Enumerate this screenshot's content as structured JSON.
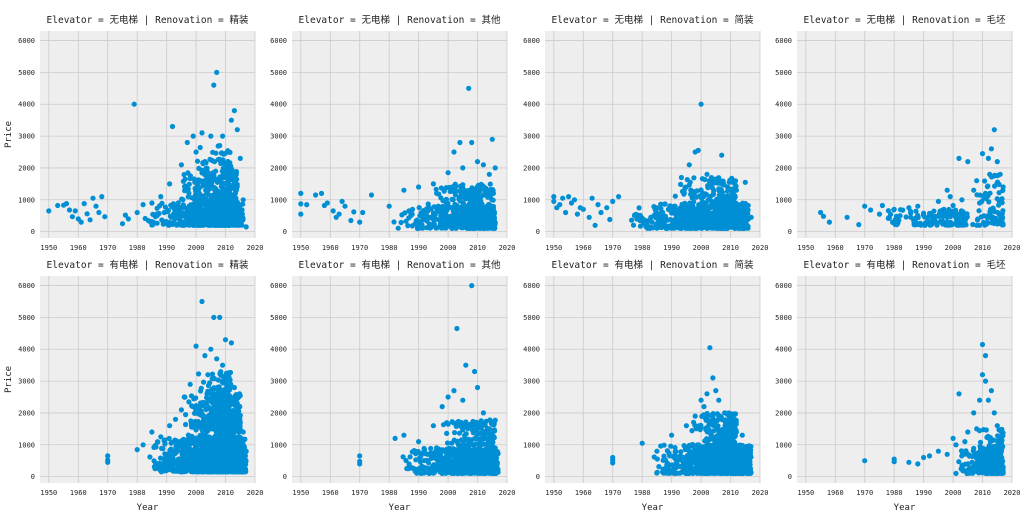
{
  "figure": {
    "row_values": [
      "无电梯",
      "有电梯"
    ],
    "col_values": [
      "精装",
      "其他",
      "简装",
      "毛坯"
    ],
    "row_var": "Elevator",
    "col_var": "Renovation",
    "ylabel": "Price",
    "xlabel": "Year"
  },
  "chart_data": {
    "type": "scatter",
    "facet_grid": true,
    "row_var": "Elevator",
    "col_var": "Renovation",
    "xlabel": "Year",
    "ylabel": "Price",
    "xlim": [
      1947,
      2020
    ],
    "ylim": [
      -200,
      6300
    ],
    "xticks": [
      1950,
      1960,
      1970,
      1980,
      1990,
      2000,
      2010,
      2020
    ],
    "yticks": [
      0,
      1000,
      2000,
      3000,
      4000,
      5000,
      6000
    ],
    "grid": true,
    "background": "#eeeeee",
    "point_color": "#008fd5",
    "panels": [
      {
        "title": "Elevator = 无电梯 | Renovation = 精装",
        "row": 0,
        "col": 0,
        "points": [
          [
            1950,
            650
          ],
          [
            1953,
            820
          ],
          [
            1955,
            830
          ],
          [
            1956,
            880
          ],
          [
            1957,
            680
          ],
          [
            1958,
            470
          ],
          [
            1959,
            650
          ],
          [
            1960,
            400
          ],
          [
            1961,
            300
          ],
          [
            1962,
            880
          ],
          [
            1963,
            560
          ],
          [
            1964,
            370
          ],
          [
            1965,
            1050
          ],
          [
            1966,
            800
          ],
          [
            1967,
            600
          ],
          [
            1968,
            1100
          ],
          [
            1969,
            470
          ],
          [
            1975,
            250
          ],
          [
            1976,
            520
          ],
          [
            1977,
            400
          ],
          [
            1979,
            4000
          ],
          [
            1980,
            600
          ],
          [
            1982,
            850
          ],
          [
            1985,
            900
          ],
          [
            1988,
            1100
          ],
          [
            1991,
            1500
          ],
          [
            1992,
            3300
          ],
          [
            1995,
            2100
          ],
          [
            1997,
            2800
          ],
          [
            1999,
            3000
          ],
          [
            2000,
            2500
          ],
          [
            2002,
            3100
          ],
          [
            2003,
            2200
          ],
          [
            2005,
            3000
          ],
          [
            2006,
            4600
          ],
          [
            2007,
            5000
          ],
          [
            2008,
            2700
          ],
          [
            2009,
            3000
          ],
          [
            2010,
            2100
          ],
          [
            2011,
            2500
          ],
          [
            2012,
            3500
          ],
          [
            2013,
            3800
          ],
          [
            2014,
            3200
          ],
          [
            2015,
            2300
          ],
          [
            2016,
            1000
          ],
          [
            2017,
            150
          ]
        ],
        "clusters": [
          {
            "x": [
              1975,
              2016
            ],
            "y": [
              200,
              900
            ],
            "n": 420
          },
          {
            "x": [
              1988,
              2014
            ],
            "y": [
              200,
              2000
            ],
            "n": 420
          },
          {
            "x": [
              1996,
              2012
            ],
            "y": [
              200,
              2700
            ],
            "n": 160
          }
        ]
      },
      {
        "title": "Elevator = 无电梯 | Renovation = 其他",
        "row": 0,
        "col": 1,
        "points": [
          [
            1950,
            1200
          ],
          [
            1950,
            870
          ],
          [
            1950,
            550
          ],
          [
            1952,
            850
          ],
          [
            1955,
            1150
          ],
          [
            1957,
            1200
          ],
          [
            1958,
            820
          ],
          [
            1959,
            900
          ],
          [
            1961,
            650
          ],
          [
            1962,
            450
          ],
          [
            1963,
            550
          ],
          [
            1964,
            950
          ],
          [
            1965,
            800
          ],
          [
            1967,
            350
          ],
          [
            1968,
            620
          ],
          [
            1970,
            300
          ],
          [
            1971,
            600
          ],
          [
            1974,
            1150
          ],
          [
            1980,
            800
          ],
          [
            1985,
            1300
          ],
          [
            1990,
            1400
          ],
          [
            1995,
            1500
          ],
          [
            2000,
            1850
          ],
          [
            2002,
            2500
          ],
          [
            2004,
            2800
          ],
          [
            2005,
            2000
          ],
          [
            2007,
            4500
          ],
          [
            2008,
            2800
          ],
          [
            2010,
            2200
          ],
          [
            2012,
            2100
          ],
          [
            2014,
            1800
          ],
          [
            2015,
            2900
          ],
          [
            2016,
            2000
          ]
        ],
        "clusters": [
          {
            "x": [
              1975,
              2016
            ],
            "y": [
              100,
              800
            ],
            "n": 380
          },
          {
            "x": [
              1988,
              2016
            ],
            "y": [
              200,
              1500
            ],
            "n": 260
          }
        ]
      },
      {
        "title": "Elevator = 无电梯 | Renovation = 简装",
        "row": 0,
        "col": 2,
        "points": [
          [
            1950,
            1100
          ],
          [
            1950,
            950
          ],
          [
            1951,
            750
          ],
          [
            1952,
            850
          ],
          [
            1953,
            1050
          ],
          [
            1954,
            600
          ],
          [
            1955,
            1100
          ],
          [
            1956,
            900
          ],
          [
            1957,
            1000
          ],
          [
            1958,
            550
          ],
          [
            1959,
            750
          ],
          [
            1960,
            700
          ],
          [
            1962,
            450
          ],
          [
            1963,
            1050
          ],
          [
            1964,
            200
          ],
          [
            1965,
            850
          ],
          [
            1966,
            600
          ],
          [
            1968,
            750
          ],
          [
            1969,
            380
          ],
          [
            1970,
            950
          ],
          [
            1972,
            1100
          ],
          [
            1996,
            2100
          ],
          [
            1998,
            2500
          ],
          [
            1999,
            2550
          ],
          [
            2000,
            4000
          ],
          [
            2002,
            1800
          ],
          [
            2005,
            1650
          ],
          [
            2007,
            2400
          ],
          [
            2009,
            1400
          ],
          [
            2012,
            1300
          ],
          [
            2015,
            1550
          ],
          [
            2017,
            450
          ]
        ],
        "clusters": [
          {
            "x": [
              1968,
              2016
            ],
            "y": [
              100,
              900
            ],
            "n": 560
          },
          {
            "x": [
              1985,
              2012
            ],
            "y": [
              200,
              1700
            ],
            "n": 300
          }
        ]
      },
      {
        "title": "Elevator = 无电梯 | Renovation = 毛坯",
        "row": 0,
        "col": 3,
        "points": [
          [
            1955,
            600
          ],
          [
            1956,
            480
          ],
          [
            1958,
            300
          ],
          [
            1964,
            450
          ],
          [
            1968,
            220
          ],
          [
            1970,
            800
          ],
          [
            1972,
            680
          ],
          [
            1975,
            550
          ],
          [
            1976,
            820
          ],
          [
            1978,
            420
          ],
          [
            1980,
            700
          ],
          [
            1982,
            500
          ],
          [
            1985,
            750
          ],
          [
            1988,
            800
          ],
          [
            1990,
            580
          ],
          [
            1992,
            500
          ],
          [
            1995,
            950
          ],
          [
            1998,
            1300
          ],
          [
            1999,
            1100
          ],
          [
            2000,
            820
          ],
          [
            2002,
            2300
          ],
          [
            2003,
            1000
          ],
          [
            2005,
            2200
          ],
          [
            2007,
            1300
          ],
          [
            2008,
            1600
          ],
          [
            2009,
            900
          ],
          [
            2010,
            2450
          ],
          [
            2011,
            1200
          ],
          [
            2012,
            2300
          ],
          [
            2013,
            2600
          ],
          [
            2014,
            3200
          ],
          [
            2015,
            2200
          ],
          [
            2016,
            1800
          ],
          [
            2017,
            1400
          ]
        ],
        "clusters": [
          {
            "x": [
              1970,
              2005
            ],
            "y": [
              200,
              700
            ],
            "n": 140
          },
          {
            "x": [
              2004,
              2017
            ],
            "y": [
              200,
              1800
            ],
            "n": 80
          }
        ]
      },
      {
        "title": "Elevator = 有电梯 | Renovation = 精装",
        "row": 1,
        "col": 0,
        "points": [
          [
            1970,
            650
          ],
          [
            1970,
            520
          ],
          [
            1970,
            450
          ],
          [
            1980,
            850
          ],
          [
            1982,
            1000
          ],
          [
            1985,
            1400
          ],
          [
            1988,
            1250
          ],
          [
            1991,
            1600
          ],
          [
            1993,
            1800
          ],
          [
            1995,
            2100
          ],
          [
            1996,
            2500
          ],
          [
            1998,
            2900
          ],
          [
            2000,
            4100
          ],
          [
            2002,
            5500
          ],
          [
            2003,
            3800
          ],
          [
            2004,
            3200
          ],
          [
            2005,
            4000
          ],
          [
            2006,
            5000
          ],
          [
            2007,
            3700
          ],
          [
            2008,
            5000
          ],
          [
            2009,
            3500
          ],
          [
            2010,
            4300
          ],
          [
            2011,
            3000
          ],
          [
            2012,
            4200
          ],
          [
            2013,
            2800
          ],
          [
            2014,
            2300
          ],
          [
            2015,
            1700
          ],
          [
            2016,
            1400
          ],
          [
            2017,
            800
          ]
        ],
        "clusters": [
          {
            "x": [
              1978,
              2017
            ],
            "y": [
              150,
              1200
            ],
            "n": 900
          },
          {
            "x": [
              1992,
              2015
            ],
            "y": [
              150,
              2600
            ],
            "n": 700
          },
          {
            "x": [
              1998,
              2012
            ],
            "y": [
              300,
              3300
            ],
            "n": 300
          }
        ]
      },
      {
        "title": "Elevator = 有电梯 | Renovation = 其他",
        "row": 1,
        "col": 1,
        "points": [
          [
            1970,
            650
          ],
          [
            1970,
            480
          ],
          [
            1970,
            400
          ],
          [
            1982,
            1200
          ],
          [
            1985,
            1300
          ],
          [
            1990,
            1100
          ],
          [
            1995,
            1600
          ],
          [
            1998,
            2200
          ],
          [
            2000,
            2500
          ],
          [
            2002,
            2700
          ],
          [
            2003,
            4650
          ],
          [
            2005,
            2400
          ],
          [
            2006,
            3500
          ],
          [
            2008,
            6000
          ],
          [
            2009,
            3300
          ],
          [
            2010,
            2800
          ],
          [
            2012,
            2000
          ],
          [
            2014,
            1500
          ],
          [
            2015,
            1300
          ],
          [
            2016,
            900
          ]
        ],
        "clusters": [
          {
            "x": [
              1978,
              2017
            ],
            "y": [
              100,
              900
            ],
            "n": 520
          },
          {
            "x": [
              1992,
              2016
            ],
            "y": [
              150,
              1800
            ],
            "n": 320
          }
        ]
      },
      {
        "title": "Elevator = 有电梯 | Renovation = 简装",
        "row": 1,
        "col": 2,
        "points": [
          [
            1970,
            600
          ],
          [
            1970,
            520
          ],
          [
            1970,
            430
          ],
          [
            1980,
            1050
          ],
          [
            1985,
            800
          ],
          [
            1990,
            1300
          ],
          [
            1995,
            1600
          ],
          [
            1998,
            1900
          ],
          [
            2000,
            2400
          ],
          [
            2001,
            2200
          ],
          [
            2002,
            2600
          ],
          [
            2003,
            4050
          ],
          [
            2004,
            3100
          ],
          [
            2005,
            2700
          ],
          [
            2006,
            2400
          ],
          [
            2008,
            2000
          ],
          [
            2010,
            1600
          ],
          [
            2012,
            1400
          ],
          [
            2014,
            1300
          ],
          [
            2016,
            800
          ]
        ],
        "clusters": [
          {
            "x": [
              1978,
              2017
            ],
            "y": [
              100,
              1000
            ],
            "n": 700
          },
          {
            "x": [
              1994,
              2012
            ],
            "y": [
              200,
              2000
            ],
            "n": 400
          }
        ]
      },
      {
        "title": "Elevator = 有电梯 | Renovation = 毛坯",
        "row": 1,
        "col": 3,
        "points": [
          [
            1970,
            500
          ],
          [
            1980,
            550
          ],
          [
            1980,
            470
          ],
          [
            1985,
            450
          ],
          [
            1988,
            400
          ],
          [
            1990,
            600
          ],
          [
            1992,
            650
          ],
          [
            1995,
            800
          ],
          [
            1998,
            700
          ],
          [
            2000,
            1200
          ],
          [
            2001,
            1000
          ],
          [
            2002,
            2600
          ],
          [
            2004,
            1100
          ],
          [
            2005,
            1400
          ],
          [
            2007,
            2000
          ],
          [
            2008,
            1500
          ],
          [
            2009,
            2400
          ],
          [
            2010,
            4150
          ],
          [
            2010,
            3200
          ],
          [
            2011,
            3800
          ],
          [
            2011,
            3000
          ],
          [
            2012,
            2400
          ],
          [
            2013,
            2700
          ],
          [
            2014,
            2000
          ],
          [
            2015,
            1600
          ],
          [
            2016,
            900
          ],
          [
            2017,
            300
          ]
        ],
        "clusters": [
          {
            "x": [
              1998,
              2017
            ],
            "y": [
              100,
              900
            ],
            "n": 220
          },
          {
            "x": [
              2006,
              2017
            ],
            "y": [
              100,
              1500
            ],
            "n": 120
          }
        ]
      }
    ]
  }
}
